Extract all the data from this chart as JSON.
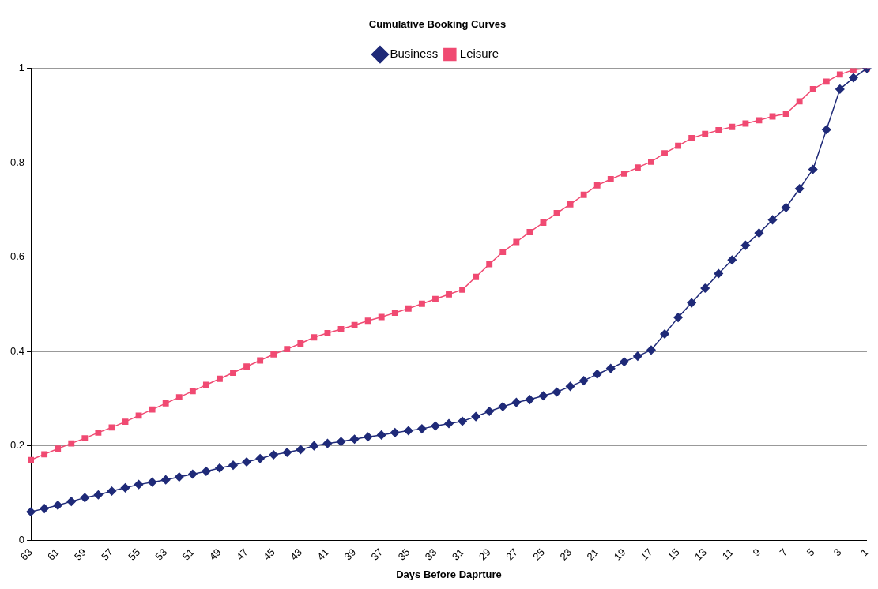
{
  "chart_data": {
    "type": "line",
    "title": "Cumulative Booking Curves",
    "xlabel": "Days Before Daprture",
    "categories": [
      "63",
      null,
      "61",
      null,
      "59",
      null,
      "57",
      null,
      "55",
      null,
      "53",
      null,
      "51",
      null,
      "49",
      null,
      "47",
      null,
      "45",
      null,
      "43",
      null,
      "41",
      null,
      "39",
      null,
      "37",
      null,
      "35",
      null,
      "33",
      null,
      "31",
      null,
      "29",
      null,
      "27",
      null,
      "25",
      null,
      "23",
      null,
      "21",
      null,
      "19",
      null,
      "17",
      null,
      "15",
      null,
      "13",
      null,
      "11",
      null,
      "9",
      null,
      "7",
      null,
      "5",
      null,
      "3",
      null,
      "1"
    ],
    "series": [
      {
        "name": "Business",
        "color": "#1f2a78",
        "marker": "diamond",
        "values": [
          0.06,
          0.067,
          0.074,
          0.082,
          0.09,
          0.096,
          0.104,
          0.111,
          0.118,
          0.123,
          0.128,
          0.134,
          0.14,
          0.146,
          0.153,
          0.159,
          0.166,
          0.173,
          0.181,
          0.186,
          0.192,
          0.2,
          0.205,
          0.209,
          0.214,
          0.219,
          0.223,
          0.228,
          0.232,
          0.236,
          0.242,
          0.247,
          0.252,
          0.262,
          0.273,
          0.283,
          0.292,
          0.298,
          0.306,
          0.314,
          0.326,
          0.338,
          0.352,
          0.364,
          0.378,
          0.39,
          0.403,
          0.437,
          0.472,
          0.503,
          0.534,
          0.565,
          0.594,
          0.625,
          0.651,
          0.679,
          0.705,
          0.745,
          0.786,
          0.87,
          0.956,
          0.98,
          1.0
        ]
      },
      {
        "name": "Leisure",
        "color": "#f04a72",
        "marker": "square",
        "values": [
          0.17,
          0.182,
          0.194,
          0.205,
          0.216,
          0.228,
          0.239,
          0.251,
          0.264,
          0.277,
          0.29,
          0.303,
          0.316,
          0.329,
          0.342,
          0.355,
          0.368,
          0.381,
          0.394,
          0.405,
          0.417,
          0.43,
          0.439,
          0.447,
          0.456,
          0.465,
          0.473,
          0.482,
          0.491,
          0.501,
          0.511,
          0.521,
          0.531,
          0.558,
          0.585,
          0.611,
          0.632,
          0.653,
          0.673,
          0.693,
          0.712,
          0.732,
          0.752,
          0.765,
          0.777,
          0.79,
          0.802,
          0.82,
          0.836,
          0.852,
          0.861,
          0.869,
          0.876,
          0.883,
          0.89,
          0.898,
          0.904,
          0.93,
          0.956,
          0.972,
          0.987,
          0.997,
          1.0
        ]
      }
    ],
    "ylim": [
      0,
      1
    ],
    "yticks": [
      0,
      0.2,
      0.4,
      0.6,
      0.8,
      1
    ],
    "grid": "y",
    "legend": "top"
  }
}
